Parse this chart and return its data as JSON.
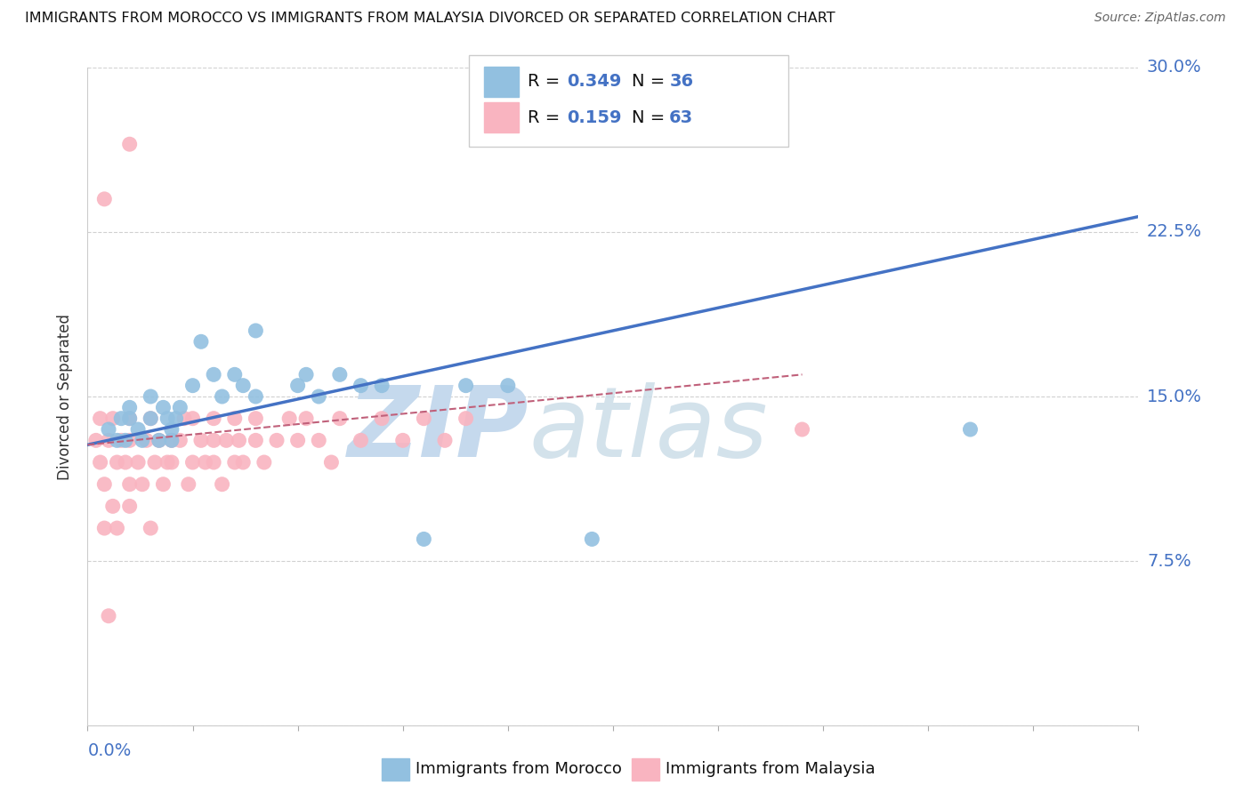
{
  "title": "IMMIGRANTS FROM MOROCCO VS IMMIGRANTS FROM MALAYSIA DIVORCED OR SEPARATED CORRELATION CHART",
  "source": "Source: ZipAtlas.com",
  "ylabel": "Divorced or Separated",
  "xlim": [
    0.0,
    0.25
  ],
  "ylim": [
    0.0,
    0.3
  ],
  "morocco_R": 0.349,
  "morocco_N": 36,
  "malaysia_R": 0.159,
  "malaysia_N": 63,
  "morocco_color": "#92c0e0",
  "malaysia_color": "#f9b4c0",
  "line_blue": "#4472c4",
  "line_pink_dashed": "#c0607a",
  "legend_label_1": "Immigrants from Morocco",
  "legend_label_2": "Immigrants from Malaysia",
  "label_color": "#4472c4",
  "morocco_x": [
    0.005,
    0.007,
    0.008,
    0.009,
    0.01,
    0.01,
    0.012,
    0.013,
    0.015,
    0.015,
    0.017,
    0.018,
    0.019,
    0.02,
    0.02,
    0.021,
    0.022,
    0.025,
    0.027,
    0.03,
    0.032,
    0.035,
    0.037,
    0.04,
    0.04,
    0.05,
    0.052,
    0.055,
    0.06,
    0.065,
    0.07,
    0.08,
    0.09,
    0.1,
    0.12,
    0.21
  ],
  "morocco_y": [
    0.135,
    0.13,
    0.14,
    0.13,
    0.145,
    0.14,
    0.135,
    0.13,
    0.14,
    0.15,
    0.13,
    0.145,
    0.14,
    0.13,
    0.135,
    0.14,
    0.145,
    0.155,
    0.175,
    0.16,
    0.15,
    0.16,
    0.155,
    0.15,
    0.18,
    0.155,
    0.16,
    0.15,
    0.16,
    0.155,
    0.155,
    0.085,
    0.155,
    0.155,
    0.085,
    0.135
  ],
  "malaysia_x": [
    0.002,
    0.003,
    0.003,
    0.004,
    0.004,
    0.005,
    0.005,
    0.006,
    0.006,
    0.007,
    0.007,
    0.008,
    0.009,
    0.01,
    0.01,
    0.01,
    0.01,
    0.012,
    0.013,
    0.014,
    0.015,
    0.015,
    0.016,
    0.017,
    0.018,
    0.019,
    0.02,
    0.02,
    0.022,
    0.023,
    0.024,
    0.025,
    0.025,
    0.027,
    0.028,
    0.03,
    0.03,
    0.03,
    0.032,
    0.033,
    0.035,
    0.035,
    0.036,
    0.037,
    0.04,
    0.04,
    0.042,
    0.045,
    0.048,
    0.05,
    0.052,
    0.055,
    0.058,
    0.06,
    0.065,
    0.07,
    0.075,
    0.08,
    0.085,
    0.09,
    0.01,
    0.004,
    0.17
  ],
  "malaysia_y": [
    0.13,
    0.12,
    0.14,
    0.09,
    0.11,
    0.13,
    0.05,
    0.1,
    0.14,
    0.09,
    0.12,
    0.13,
    0.12,
    0.11,
    0.13,
    0.14,
    0.1,
    0.12,
    0.11,
    0.13,
    0.14,
    0.09,
    0.12,
    0.13,
    0.11,
    0.12,
    0.13,
    0.12,
    0.13,
    0.14,
    0.11,
    0.12,
    0.14,
    0.13,
    0.12,
    0.13,
    0.12,
    0.14,
    0.11,
    0.13,
    0.12,
    0.14,
    0.13,
    0.12,
    0.14,
    0.13,
    0.12,
    0.13,
    0.14,
    0.13,
    0.14,
    0.13,
    0.12,
    0.14,
    0.13,
    0.14,
    0.13,
    0.14,
    0.13,
    0.14,
    0.265,
    0.24,
    0.135
  ],
  "morocco_trend_x": [
    0.0,
    0.25
  ],
  "morocco_trend_y": [
    0.128,
    0.232
  ],
  "malaysia_trend_x": [
    0.0,
    0.17
  ],
  "malaysia_trend_y": [
    0.128,
    0.16
  ]
}
